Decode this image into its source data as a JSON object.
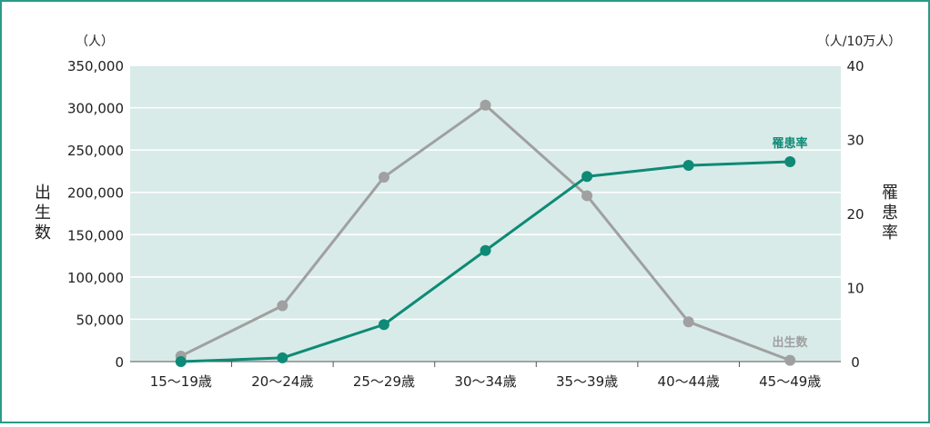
{
  "colors": {
    "frame_border": "#2a9a86",
    "frame_bg": "#ffffff",
    "plot_bg": "#d8ebe8",
    "gridline": "#ffffff",
    "axis_text": "#222222",
    "birth_series": "#a0a0a0",
    "rate_series": "#0e8a76"
  },
  "chart_data": {
    "type": "line",
    "left_axis": {
      "unit": "（人）",
      "label": "出生数",
      "ylim": [
        0,
        350000
      ],
      "ticks": [
        "0",
        "50,000",
        "100,000",
        "150,000",
        "200,000",
        "250,000",
        "300,000",
        "350,000"
      ]
    },
    "right_axis": {
      "unit": "（人/10万人）",
      "label": "罹患率",
      "ylim": [
        0,
        40
      ],
      "ticks": [
        "0",
        "10",
        "20",
        "30",
        "40"
      ]
    },
    "categories": [
      "15～19歳",
      "20～24歳",
      "25～29歳",
      "30～34歳",
      "35～39歳",
      "40～44歳",
      "45～49歳"
    ],
    "series": [
      {
        "name": "出生数",
        "axis": "left",
        "values": [
          6500,
          66000,
          218000,
          303000,
          196000,
          47000,
          1500
        ]
      },
      {
        "name": "罹患率",
        "axis": "right",
        "values": [
          0,
          0.5,
          5,
          15,
          25,
          26.5,
          27
        ]
      }
    ],
    "grid": true
  }
}
